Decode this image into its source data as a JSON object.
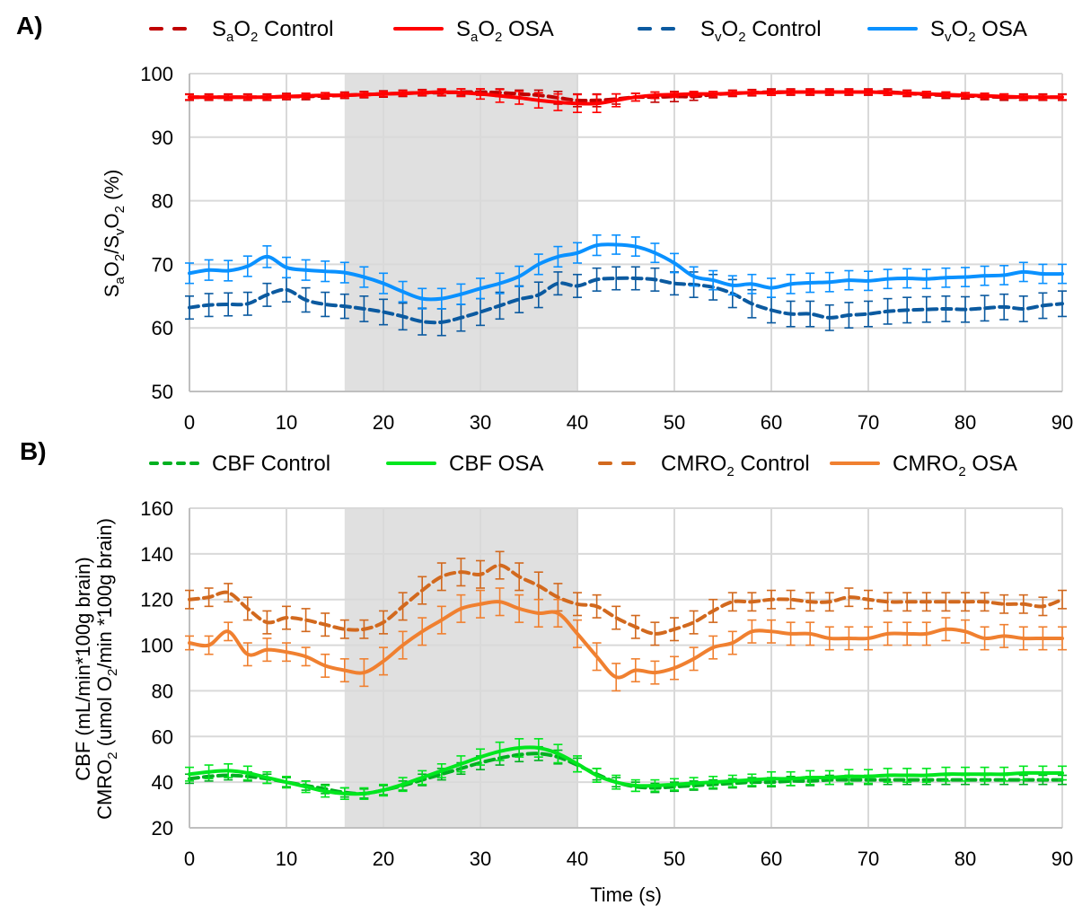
{
  "figure": {
    "x_axis_title": "Time (s)",
    "shaded_interval": [
      16,
      40
    ],
    "shade_color": "#e0e0e0",
    "grid_color": "#d9d9d9"
  },
  "chart_data": [
    {
      "id": "A",
      "panel_label": "A)",
      "type": "line",
      "title": "",
      "xlabel": "",
      "ylabel": "SaO2/SvO2 (%)",
      "ylabel_parts": [
        "S",
        "a",
        "O",
        "2",
        "/S",
        "v",
        "O",
        "2",
        " (%)"
      ],
      "xlim": [
        0,
        90
      ],
      "ylim": [
        50,
        100
      ],
      "xticks": [
        "0",
        "10",
        "20",
        "30",
        "40",
        "50",
        "60",
        "70",
        "80",
        "90"
      ],
      "yticks": [
        "50",
        "60",
        "70",
        "80",
        "90",
        "100"
      ],
      "grid": true,
      "legend_position": "top",
      "x_step": 2,
      "series": [
        {
          "name": "SaO2 Control",
          "legend": {
            "main": "S",
            "sub1": "a",
            "mid": "O",
            "sub2": "2",
            "rest": " Control"
          },
          "color": "#c00000",
          "dashed": true,
          "values": [
            96.3,
            96.3,
            96.3,
            96.3,
            96.3,
            96.4,
            96.4,
            96.5,
            96.6,
            96.7,
            96.8,
            96.9,
            97.0,
            97.0,
            97.1,
            97.1,
            97.0,
            96.8,
            96.6,
            96.2,
            95.8,
            95.8,
            96.0,
            96.3,
            96.3,
            96.4,
            96.4,
            96.7,
            96.9,
            97.0,
            97.1,
            97.1,
            97.1,
            97.1,
            97.1,
            97.1,
            97.1,
            96.9,
            96.7,
            96.6,
            96.5,
            96.4,
            96.3,
            96.3,
            96.3,
            96.3
          ],
          "errors": [
            0.5,
            0.5,
            0.5,
            0.5,
            0.5,
            0.5,
            0.5,
            0.5,
            0.5,
            0.5,
            0.5,
            0.5,
            0.5,
            0.5,
            0.5,
            0.5,
            0.6,
            0.6,
            0.8,
            1.0,
            1.0,
            1.0,
            0.8,
            0.6,
            0.8,
            0.8,
            0.6,
            0.5,
            0.5,
            0.5,
            0.5,
            0.5,
            0.5,
            0.5,
            0.5,
            0.5,
            0.5,
            0.5,
            0.5,
            0.5,
            0.5,
            0.5,
            0.5,
            0.5,
            0.5,
            0.5
          ]
        },
        {
          "name": "SaO2 OSA",
          "legend": {
            "main": "S",
            "sub1": "a",
            "mid": "O",
            "sub2": "2",
            "rest": " OSA"
          },
          "color": "#ff0000",
          "dashed": false,
          "values": [
            96.3,
            96.3,
            96.3,
            96.3,
            96.3,
            96.4,
            96.5,
            96.6,
            96.6,
            96.7,
            96.8,
            96.9,
            97.0,
            97.1,
            97.0,
            96.8,
            96.5,
            96.2,
            95.8,
            95.5,
            95.3,
            95.3,
            95.8,
            96.3,
            96.6,
            96.7,
            96.8,
            96.8,
            96.9,
            97.0,
            97.0,
            97.1,
            97.1,
            97.1,
            97.1,
            97.1,
            97.0,
            96.9,
            96.8,
            96.7,
            96.6,
            96.5,
            96.4,
            96.3,
            96.3,
            96.3
          ],
          "errors": [
            0.4,
            0.4,
            0.4,
            0.4,
            0.4,
            0.4,
            0.4,
            0.4,
            0.4,
            0.4,
            0.4,
            0.4,
            0.4,
            0.5,
            0.6,
            0.8,
            1.0,
            1.0,
            1.2,
            1.3,
            1.4,
            1.4,
            1.0,
            0.6,
            0.5,
            0.4,
            0.4,
            0.4,
            0.4,
            0.4,
            0.4,
            0.4,
            0.4,
            0.4,
            0.4,
            0.4,
            0.4,
            0.4,
            0.4,
            0.4,
            0.4,
            0.4,
            0.4,
            0.4,
            0.4,
            0.4
          ]
        },
        {
          "name": "SvO2 Control",
          "legend": {
            "main": "S",
            "sub1": "v",
            "mid": "O",
            "sub2": "2",
            "rest": " Control"
          },
          "color": "#0b5aa0",
          "dashed": true,
          "values": [
            63.2,
            63.6,
            63.7,
            63.8,
            65.2,
            66.0,
            64.4,
            63.7,
            63.4,
            63.0,
            62.5,
            61.8,
            61.0,
            60.9,
            61.6,
            62.5,
            63.5,
            64.5,
            65.2,
            67.0,
            66.6,
            67.6,
            67.8,
            67.8,
            67.6,
            67.0,
            66.8,
            66.4,
            65.4,
            63.8,
            62.8,
            62.2,
            62.2,
            61.6,
            62.0,
            62.2,
            62.6,
            62.8,
            62.9,
            63.0,
            62.9,
            63.1,
            63.3,
            63.0,
            63.5,
            63.8
          ],
          "errors": [
            1.8,
            1.8,
            1.8,
            1.8,
            1.8,
            1.9,
            1.9,
            1.9,
            1.9,
            2.0,
            2.0,
            2.1,
            2.1,
            2.1,
            2.1,
            2.1,
            2.1,
            2.1,
            2.0,
            1.8,
            1.8,
            1.8,
            1.8,
            1.8,
            1.8,
            1.8,
            2.0,
            2.0,
            2.2,
            2.2,
            2.0,
            2.0,
            2.0,
            2.0,
            2.0,
            2.0,
            2.0,
            2.0,
            2.0,
            2.0,
            2.0,
            2.0,
            2.0,
            2.0,
            2.0,
            2.0
          ]
        },
        {
          "name": "SvO2 OSA",
          "legend": {
            "main": "S",
            "sub1": "v",
            "mid": "O",
            "sub2": "2",
            "rest": " OSA"
          },
          "color": "#0a91ff",
          "dashed": false,
          "values": [
            68.6,
            69.1,
            69.0,
            69.7,
            71.2,
            69.5,
            69.1,
            68.9,
            68.7,
            68.0,
            67.0,
            65.7,
            64.6,
            64.6,
            65.3,
            66.2,
            67.0,
            68.1,
            70.0,
            71.2,
            71.8,
            73.0,
            73.1,
            72.8,
            71.8,
            70.2,
            68.1,
            67.5,
            66.7,
            66.9,
            66.3,
            66.9,
            67.1,
            67.2,
            67.5,
            67.4,
            67.7,
            67.8,
            67.7,
            67.9,
            68.0,
            68.2,
            68.3,
            68.8,
            68.5,
            68.5
          ],
          "errors": [
            1.6,
            1.6,
            1.6,
            1.6,
            1.7,
            1.6,
            1.6,
            1.6,
            1.6,
            1.6,
            1.6,
            1.6,
            1.6,
            1.6,
            1.6,
            1.6,
            1.6,
            1.6,
            1.6,
            1.6,
            1.6,
            1.6,
            1.5,
            1.5,
            1.5,
            1.5,
            1.5,
            1.5,
            1.5,
            1.5,
            1.5,
            1.5,
            1.5,
            1.5,
            1.5,
            1.5,
            1.5,
            1.5,
            1.5,
            1.5,
            1.5,
            1.5,
            1.5,
            1.5,
            1.5,
            1.5
          ]
        }
      ]
    },
    {
      "id": "B",
      "panel_label": "B)",
      "type": "line",
      "title": "",
      "xlabel": "Time (s)",
      "ylabel": "CBF (mL/min*100g brain) / CMRO2 (umol O2/min *100g brain)",
      "ylabel_line1": "CBF (mL/min*100g brain)",
      "ylabel_line2_parts": [
        "CMRO",
        "2",
        " (umol O",
        "2",
        "/min *100g brain)"
      ],
      "xlim": [
        0,
        90
      ],
      "ylim": [
        20,
        160
      ],
      "xticks": [
        "0",
        "10",
        "20",
        "30",
        "40",
        "50",
        "60",
        "70",
        "80",
        "90"
      ],
      "yticks": [
        "20",
        "40",
        "60",
        "80",
        "100",
        "120",
        "140",
        "160"
      ],
      "grid": true,
      "legend_position": "top",
      "x_step": 2,
      "series": [
        {
          "name": "CBF Control",
          "legend": {
            "text": "CBF Control"
          },
          "color": "#00b020",
          "dashed": true,
          "values": [
            41.5,
            42.5,
            43.0,
            42.5,
            41.5,
            40.0,
            38.5,
            37.0,
            35.5,
            35.0,
            36.5,
            38.5,
            41.0,
            43.5,
            46.0,
            48.5,
            50.5,
            52.0,
            52.5,
            51.0,
            47.5,
            43.5,
            40.0,
            38.0,
            37.5,
            38.0,
            38.5,
            39.0,
            39.5,
            40.0,
            40.0,
            40.5,
            40.5,
            41.0,
            41.0,
            41.0,
            41.0,
            41.0,
            41.0,
            41.0,
            41.0,
            41.0,
            41.0,
            41.0,
            41.0,
            41.0
          ],
          "errors": [
            2.0,
            2.0,
            2.0,
            2.0,
            2.0,
            2.0,
            2.0,
            2.0,
            2.0,
            2.0,
            2.0,
            2.0,
            2.5,
            2.5,
            2.5,
            3.0,
            3.0,
            3.0,
            3.0,
            3.0,
            3.0,
            2.5,
            2.0,
            2.0,
            2.0,
            2.0,
            2.0,
            2.0,
            2.0,
            2.0,
            2.0,
            2.0,
            2.0,
            2.0,
            2.0,
            2.0,
            2.0,
            2.0,
            2.0,
            2.0,
            2.0,
            2.0,
            2.0,
            2.0,
            2.0,
            2.0
          ]
        },
        {
          "name": "CBF OSA",
          "legend": {
            "text": "CBF OSA"
          },
          "color": "#00e61e",
          "dashed": false,
          "values": [
            43.5,
            44.5,
            45.0,
            44.0,
            42.0,
            40.0,
            38.0,
            36.0,
            35.0,
            35.0,
            36.5,
            39.0,
            42.0,
            45.0,
            48.0,
            51.0,
            53.5,
            55.0,
            55.0,
            52.5,
            48.0,
            43.0,
            40.0,
            38.5,
            38.5,
            39.0,
            39.5,
            40.0,
            40.5,
            41.0,
            41.5,
            41.5,
            42.0,
            42.0,
            42.5,
            42.5,
            43.0,
            43.0,
            43.0,
            43.5,
            43.5,
            43.5,
            43.5,
            44.0,
            44.0,
            44.0
          ],
          "errors": [
            3.0,
            3.0,
            3.0,
            3.0,
            2.5,
            2.5,
            2.5,
            2.5,
            2.5,
            2.5,
            2.5,
            3.0,
            3.0,
            3.0,
            3.5,
            3.5,
            4.0,
            4.0,
            4.0,
            4.0,
            3.5,
            3.0,
            3.0,
            2.5,
            2.5,
            2.5,
            2.5,
            2.5,
            2.5,
            2.5,
            3.0,
            3.0,
            3.0,
            3.0,
            3.0,
            3.0,
            3.0,
            3.0,
            3.0,
            3.0,
            3.0,
            3.0,
            3.0,
            3.0,
            3.0,
            3.0
          ]
        },
        {
          "name": "CMRO2 Control",
          "legend": {
            "main": "CMRO",
            "sub": "2",
            "rest": " Control"
          },
          "color": "#d2691e",
          "dashed": true,
          "values": [
            120,
            121,
            123,
            116,
            110,
            112,
            111,
            109,
            107,
            107,
            110,
            117,
            124,
            130,
            132,
            131,
            135,
            130,
            126,
            121,
            118,
            117,
            112,
            108,
            105,
            107,
            110,
            115,
            119,
            119,
            120,
            120,
            119,
            119,
            121,
            120,
            119,
            119,
            119,
            119,
            119,
            119,
            118,
            118,
            117,
            120
          ],
          "errors": [
            4,
            4,
            4,
            5,
            5,
            5,
            5,
            5,
            4,
            4,
            5,
            6,
            6,
            6,
            6,
            6,
            6,
            6,
            6,
            6,
            5,
            5,
            5,
            5,
            5,
            5,
            5,
            5,
            4,
            4,
            4,
            4,
            4,
            4,
            4,
            4,
            4,
            4,
            4,
            4,
            4,
            4,
            4,
            4,
            4,
            4
          ]
        },
        {
          "name": "CMRO2 OSA",
          "legend": {
            "main": "CMRO",
            "sub": "2",
            "rest": " OSA"
          },
          "color": "#f08030",
          "dashed": false,
          "values": [
            101,
            100,
            106,
            96,
            98,
            97,
            95,
            91,
            89,
            88,
            93,
            100,
            106,
            111,
            116,
            118,
            119,
            116,
            114,
            114,
            105,
            95,
            86,
            89,
            88,
            90,
            94,
            99,
            101,
            106,
            106,
            105,
            105,
            103,
            103,
            103,
            105,
            105,
            105,
            107,
            106,
            103,
            104,
            103,
            103,
            103
          ],
          "errors": [
            3,
            4,
            4,
            5,
            5,
            4,
            4,
            5,
            5,
            6,
            6,
            6,
            6,
            6,
            6,
            6,
            6,
            6,
            6,
            6,
            6,
            6,
            6,
            5,
            5,
            5,
            5,
            5,
            5,
            5,
            5,
            5,
            5,
            5,
            5,
            5,
            5,
            5,
            5,
            5,
            5,
            5,
            5,
            5,
            5,
            5
          ]
        }
      ]
    }
  ]
}
